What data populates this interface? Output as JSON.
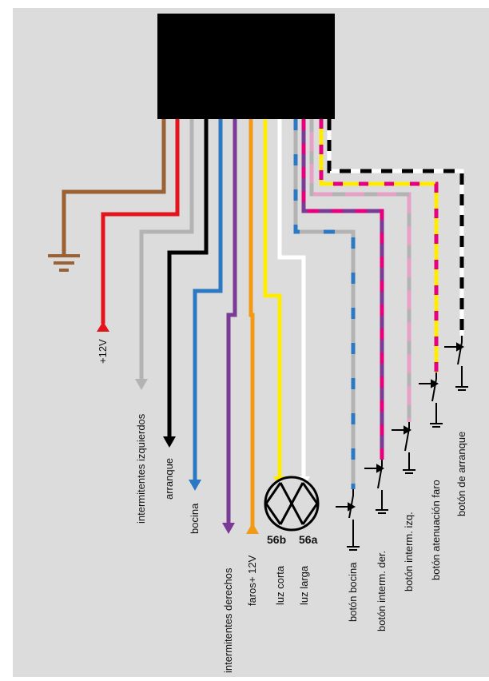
{
  "diagram": {
    "background": "#dcdcdc",
    "box_color": "#000000",
    "wire_colors": {
      "brown": "#9a6234",
      "red": "#e3141c",
      "gray": "#b3b3b3",
      "black": "#000000",
      "blue": "#2b78c3",
      "purple": "#7b3a96",
      "orange": "#f39a15",
      "yellow": "#ffec00",
      "white": "#ffffff",
      "magenta": "#e6007e",
      "pink": "#e8a1c6"
    },
    "labels": {
      "plus12v": "+12V",
      "left_indicators": "intermitentes izquierdos",
      "start": "arranque",
      "horn": "bocina",
      "right_indicators": "intermitentes derechos",
      "lights_12v": "faros+ 12V",
      "low_beam": "luz corta",
      "high_beam": "luz larga",
      "btn_horn": "botón bocina",
      "btn_right": "botón interm. der.",
      "btn_left": "botón interm. izq.",
      "btn_dim": "botón atenuación faro",
      "btn_start": "botón de arranque"
    },
    "lamp_terminals": {
      "low": "56b",
      "high": "56a"
    }
  }
}
